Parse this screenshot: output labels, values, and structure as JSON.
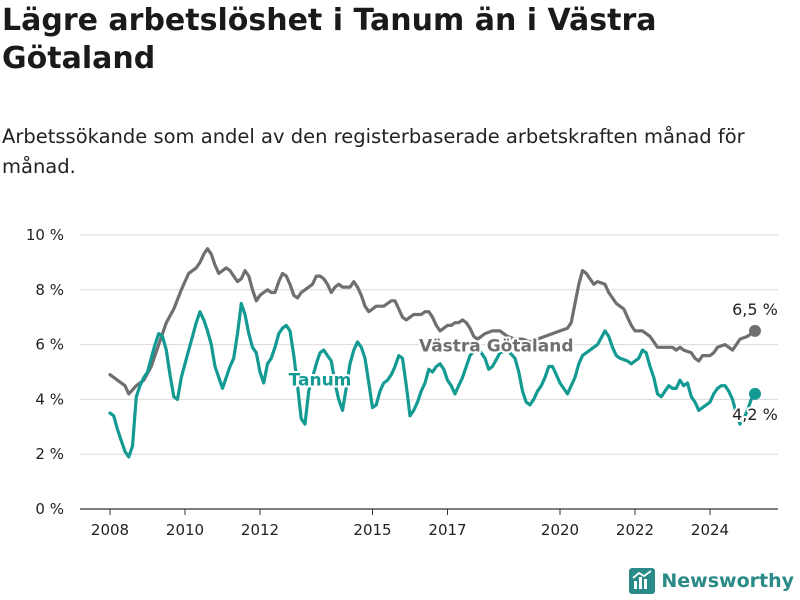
{
  "header": {
    "title": "Lägre arbetslöshet i Tanum än i Västra Götaland",
    "subtitle": "Arbetssökande som andel av den registerbaserade arbetskraften månad för månad."
  },
  "brand": {
    "name": "Newsworthy"
  },
  "colors": {
    "tanum": "#139a92",
    "vastra_gotaland": "#6f6f72",
    "grid": "#d9d9d9"
  },
  "chart_data": {
    "type": "line",
    "ylim": [
      0,
      10
    ],
    "yticks": [
      0,
      2,
      4,
      6,
      8,
      10
    ],
    "ytick_labels": [
      "0 %",
      "2 %",
      "4 %",
      "6 %",
      "8 %",
      "10 %"
    ],
    "xticks": [
      2008,
      2010,
      2012,
      2015,
      2017,
      2020,
      2022,
      2024
    ],
    "xtick_labels": [
      "2008",
      "2010",
      "2012",
      "2015",
      "2017",
      "2020",
      "2022",
      "2024"
    ],
    "grid": true,
    "series": [
      {
        "name": "Västra Götaland",
        "end_label": "6,5 %",
        "points": [
          [
            2008.0,
            4.9
          ],
          [
            2008.2,
            4.7
          ],
          [
            2008.4,
            4.5
          ],
          [
            2008.5,
            4.2
          ],
          [
            2008.7,
            4.5
          ],
          [
            2008.9,
            4.7
          ],
          [
            2009.1,
            5.2
          ],
          [
            2009.3,
            6.0
          ],
          [
            2009.5,
            6.8
          ],
          [
            2009.7,
            7.3
          ],
          [
            2009.9,
            8.0
          ],
          [
            2010.1,
            8.6
          ],
          [
            2010.3,
            8.8
          ],
          [
            2010.4,
            9.0
          ],
          [
            2010.5,
            9.3
          ],
          [
            2010.6,
            9.5
          ],
          [
            2010.7,
            9.3
          ],
          [
            2010.8,
            8.9
          ],
          [
            2010.9,
            8.6
          ],
          [
            2011.0,
            8.7
          ],
          [
            2011.1,
            8.8
          ],
          [
            2011.2,
            8.7
          ],
          [
            2011.3,
            8.5
          ],
          [
            2011.4,
            8.3
          ],
          [
            2011.5,
            8.4
          ],
          [
            2011.6,
            8.7
          ],
          [
            2011.7,
            8.5
          ],
          [
            2011.8,
            8.0
          ],
          [
            2011.9,
            7.6
          ],
          [
            2012.0,
            7.8
          ],
          [
            2012.1,
            7.9
          ],
          [
            2012.2,
            8.0
          ],
          [
            2012.3,
            7.9
          ],
          [
            2012.4,
            7.9
          ],
          [
            2012.5,
            8.3
          ],
          [
            2012.6,
            8.6
          ],
          [
            2012.7,
            8.5
          ],
          [
            2012.8,
            8.2
          ],
          [
            2012.9,
            7.8
          ],
          [
            2013.0,
            7.7
          ],
          [
            2013.1,
            7.9
          ],
          [
            2013.2,
            8.0
          ],
          [
            2013.3,
            8.1
          ],
          [
            2013.4,
            8.2
          ],
          [
            2013.5,
            8.5
          ],
          [
            2013.6,
            8.5
          ],
          [
            2013.7,
            8.4
          ],
          [
            2013.8,
            8.2
          ],
          [
            2013.9,
            7.9
          ],
          [
            2014.0,
            8.1
          ],
          [
            2014.1,
            8.2
          ],
          [
            2014.2,
            8.1
          ],
          [
            2014.3,
            8.1
          ],
          [
            2014.4,
            8.1
          ],
          [
            2014.5,
            8.3
          ],
          [
            2014.6,
            8.1
          ],
          [
            2014.7,
            7.8
          ],
          [
            2014.8,
            7.4
          ],
          [
            2014.9,
            7.2
          ],
          [
            2015.0,
            7.3
          ],
          [
            2015.1,
            7.4
          ],
          [
            2015.2,
            7.4
          ],
          [
            2015.3,
            7.4
          ],
          [
            2015.4,
            7.5
          ],
          [
            2015.5,
            7.6
          ],
          [
            2015.6,
            7.6
          ],
          [
            2015.7,
            7.3
          ],
          [
            2015.8,
            7.0
          ],
          [
            2015.9,
            6.9
          ],
          [
            2016.0,
            7.0
          ],
          [
            2016.1,
            7.1
          ],
          [
            2016.2,
            7.1
          ],
          [
            2016.3,
            7.1
          ],
          [
            2016.4,
            7.2
          ],
          [
            2016.5,
            7.2
          ],
          [
            2016.6,
            7.0
          ],
          [
            2016.7,
            6.7
          ],
          [
            2016.8,
            6.5
          ],
          [
            2016.9,
            6.6
          ],
          [
            2017.0,
            6.7
          ],
          [
            2017.1,
            6.7
          ],
          [
            2017.2,
            6.8
          ],
          [
            2017.3,
            6.8
          ],
          [
            2017.4,
            6.9
          ],
          [
            2017.5,
            6.8
          ],
          [
            2017.6,
            6.6
          ],
          [
            2017.7,
            6.3
          ],
          [
            2017.8,
            6.2
          ],
          [
            2017.9,
            6.3
          ],
          [
            2018.0,
            6.4
          ],
          [
            2018.2,
            6.5
          ],
          [
            2018.4,
            6.5
          ],
          [
            2018.6,
            6.3
          ],
          [
            2018.8,
            6.2
          ],
          [
            2019.0,
            6.2
          ],
          [
            2019.2,
            6.1
          ],
          [
            2019.4,
            6.2
          ],
          [
            2019.6,
            6.3
          ],
          [
            2019.8,
            6.4
          ],
          [
            2020.0,
            6.5
          ],
          [
            2020.2,
            6.6
          ],
          [
            2020.3,
            6.8
          ],
          [
            2020.4,
            7.5
          ],
          [
            2020.5,
            8.2
          ],
          [
            2020.6,
            8.7
          ],
          [
            2020.7,
            8.6
          ],
          [
            2020.8,
            8.4
          ],
          [
            2020.9,
            8.2
          ],
          [
            2021.0,
            8.3
          ],
          [
            2021.2,
            8.2
          ],
          [
            2021.3,
            7.9
          ],
          [
            2021.4,
            7.7
          ],
          [
            2021.5,
            7.5
          ],
          [
            2021.6,
            7.4
          ],
          [
            2021.7,
            7.3
          ],
          [
            2021.8,
            7.0
          ],
          [
            2021.9,
            6.7
          ],
          [
            2022.0,
            6.5
          ],
          [
            2022.2,
            6.5
          ],
          [
            2022.4,
            6.3
          ],
          [
            2022.5,
            6.1
          ],
          [
            2022.6,
            5.9
          ],
          [
            2022.8,
            5.9
          ],
          [
            2023.0,
            5.9
          ],
          [
            2023.1,
            5.8
          ],
          [
            2023.2,
            5.9
          ],
          [
            2023.3,
            5.8
          ],
          [
            2023.5,
            5.7
          ],
          [
            2023.6,
            5.5
          ],
          [
            2023.7,
            5.4
          ],
          [
            2023.8,
            5.6
          ],
          [
            2024.0,
            5.6
          ],
          [
            2024.1,
            5.7
          ],
          [
            2024.2,
            5.9
          ],
          [
            2024.4,
            6.0
          ],
          [
            2024.5,
            5.9
          ],
          [
            2024.6,
            5.8
          ],
          [
            2024.7,
            6.0
          ],
          [
            2024.8,
            6.2
          ],
          [
            2025.0,
            6.3
          ],
          [
            2025.1,
            6.4
          ],
          [
            2025.2,
            6.5
          ]
        ]
      },
      {
        "name": "Tanum",
        "end_label": "4,2 %",
        "points": [
          [
            2008.0,
            3.5
          ],
          [
            2008.1,
            3.4
          ],
          [
            2008.2,
            2.9
          ],
          [
            2008.3,
            2.5
          ],
          [
            2008.4,
            2.1
          ],
          [
            2008.5,
            1.9
          ],
          [
            2008.6,
            2.3
          ],
          [
            2008.7,
            4.1
          ],
          [
            2008.8,
            4.5
          ],
          [
            2008.9,
            4.8
          ],
          [
            2009.0,
            5.0
          ],
          [
            2009.1,
            5.5
          ],
          [
            2009.2,
            6.0
          ],
          [
            2009.3,
            6.4
          ],
          [
            2009.4,
            6.3
          ],
          [
            2009.5,
            5.8
          ],
          [
            2009.6,
            4.9
          ],
          [
            2009.7,
            4.1
          ],
          [
            2009.8,
            4.0
          ],
          [
            2009.9,
            4.8
          ],
          [
            2010.0,
            5.3
          ],
          [
            2010.1,
            5.8
          ],
          [
            2010.2,
            6.3
          ],
          [
            2010.3,
            6.8
          ],
          [
            2010.4,
            7.2
          ],
          [
            2010.5,
            6.9
          ],
          [
            2010.6,
            6.5
          ],
          [
            2010.7,
            6.0
          ],
          [
            2010.8,
            5.2
          ],
          [
            2010.9,
            4.8
          ],
          [
            2011.0,
            4.4
          ],
          [
            2011.1,
            4.8
          ],
          [
            2011.2,
            5.2
          ],
          [
            2011.3,
            5.5
          ],
          [
            2011.4,
            6.4
          ],
          [
            2011.5,
            7.5
          ],
          [
            2011.6,
            7.1
          ],
          [
            2011.7,
            6.4
          ],
          [
            2011.8,
            5.9
          ],
          [
            2011.9,
            5.7
          ],
          [
            2012.0,
            5.0
          ],
          [
            2012.1,
            4.6
          ],
          [
            2012.2,
            5.3
          ],
          [
            2012.3,
            5.5
          ],
          [
            2012.4,
            5.9
          ],
          [
            2012.5,
            6.4
          ],
          [
            2012.6,
            6.6
          ],
          [
            2012.7,
            6.7
          ],
          [
            2012.8,
            6.5
          ],
          [
            2012.9,
            5.6
          ],
          [
            2013.0,
            4.5
          ],
          [
            2013.1,
            3.3
          ],
          [
            2013.2,
            3.1
          ],
          [
            2013.3,
            4.3
          ],
          [
            2013.4,
            4.8
          ],
          [
            2013.5,
            5.3
          ],
          [
            2013.6,
            5.7
          ],
          [
            2013.7,
            5.8
          ],
          [
            2013.8,
            5.6
          ],
          [
            2013.9,
            5.4
          ],
          [
            2014.0,
            4.6
          ],
          [
            2014.1,
            4.0
          ],
          [
            2014.2,
            3.6
          ],
          [
            2014.3,
            4.4
          ],
          [
            2014.4,
            5.3
          ],
          [
            2014.5,
            5.8
          ],
          [
            2014.6,
            6.1
          ],
          [
            2014.7,
            5.9
          ],
          [
            2014.8,
            5.5
          ],
          [
            2014.9,
            4.6
          ],
          [
            2015.0,
            3.7
          ],
          [
            2015.1,
            3.8
          ],
          [
            2015.2,
            4.3
          ],
          [
            2015.3,
            4.6
          ],
          [
            2015.4,
            4.7
          ],
          [
            2015.5,
            4.9
          ],
          [
            2015.6,
            5.2
          ],
          [
            2015.7,
            5.6
          ],
          [
            2015.8,
            5.5
          ],
          [
            2015.9,
            4.5
          ],
          [
            2016.0,
            3.4
          ],
          [
            2016.1,
            3.6
          ],
          [
            2016.2,
            3.9
          ],
          [
            2016.3,
            4.3
          ],
          [
            2016.4,
            4.6
          ],
          [
            2016.5,
            5.1
          ],
          [
            2016.6,
            5.0
          ],
          [
            2016.7,
            5.2
          ],
          [
            2016.8,
            5.3
          ],
          [
            2016.9,
            5.1
          ],
          [
            2017.0,
            4.7
          ],
          [
            2017.1,
            4.5
          ],
          [
            2017.2,
            4.2
          ],
          [
            2017.3,
            4.5
          ],
          [
            2017.4,
            4.8
          ],
          [
            2017.5,
            5.2
          ],
          [
            2017.6,
            5.6
          ],
          [
            2017.8,
            5.9
          ],
          [
            2018.0,
            5.5
          ],
          [
            2018.1,
            5.1
          ],
          [
            2018.2,
            5.2
          ],
          [
            2018.4,
            5.7
          ],
          [
            2018.6,
            5.8
          ],
          [
            2018.8,
            5.5
          ],
          [
            2018.9,
            5.0
          ],
          [
            2019.0,
            4.3
          ],
          [
            2019.1,
            3.9
          ],
          [
            2019.2,
            3.8
          ],
          [
            2019.3,
            4.0
          ],
          [
            2019.4,
            4.3
          ],
          [
            2019.5,
            4.5
          ],
          [
            2019.6,
            4.8
          ],
          [
            2019.7,
            5.2
          ],
          [
            2019.8,
            5.2
          ],
          [
            2019.9,
            4.9
          ],
          [
            2020.0,
            4.6
          ],
          [
            2020.1,
            4.4
          ],
          [
            2020.2,
            4.2
          ],
          [
            2020.3,
            4.5
          ],
          [
            2020.4,
            4.8
          ],
          [
            2020.5,
            5.3
          ],
          [
            2020.6,
            5.6
          ],
          [
            2020.8,
            5.8
          ],
          [
            2021.0,
            6.0
          ],
          [
            2021.2,
            6.5
          ],
          [
            2021.3,
            6.3
          ],
          [
            2021.4,
            5.9
          ],
          [
            2021.5,
            5.6
          ],
          [
            2021.6,
            5.5
          ],
          [
            2021.8,
            5.4
          ],
          [
            2021.9,
            5.3
          ],
          [
            2022.0,
            5.4
          ],
          [
            2022.1,
            5.5
          ],
          [
            2022.2,
            5.8
          ],
          [
            2022.3,
            5.7
          ],
          [
            2022.4,
            5.2
          ],
          [
            2022.5,
            4.8
          ],
          [
            2022.6,
            4.2
          ],
          [
            2022.7,
            4.1
          ],
          [
            2022.8,
            4.3
          ],
          [
            2022.9,
            4.5
          ],
          [
            2023.0,
            4.4
          ],
          [
            2023.1,
            4.4
          ],
          [
            2023.2,
            4.7
          ],
          [
            2023.3,
            4.5
          ],
          [
            2023.4,
            4.6
          ],
          [
            2023.5,
            4.1
          ],
          [
            2023.6,
            3.9
          ],
          [
            2023.7,
            3.6
          ],
          [
            2023.8,
            3.7
          ],
          [
            2023.9,
            3.8
          ],
          [
            2024.0,
            3.9
          ],
          [
            2024.1,
            4.2
          ],
          [
            2024.2,
            4.4
          ],
          [
            2024.3,
            4.5
          ],
          [
            2024.4,
            4.5
          ],
          [
            2024.5,
            4.3
          ],
          [
            2024.6,
            4.0
          ],
          [
            2024.7,
            3.5
          ],
          [
            2024.8,
            3.1
          ],
          [
            2024.9,
            3.3
          ],
          [
            2025.0,
            3.6
          ],
          [
            2025.1,
            4.0
          ],
          [
            2025.2,
            4.2
          ]
        ]
      }
    ]
  }
}
